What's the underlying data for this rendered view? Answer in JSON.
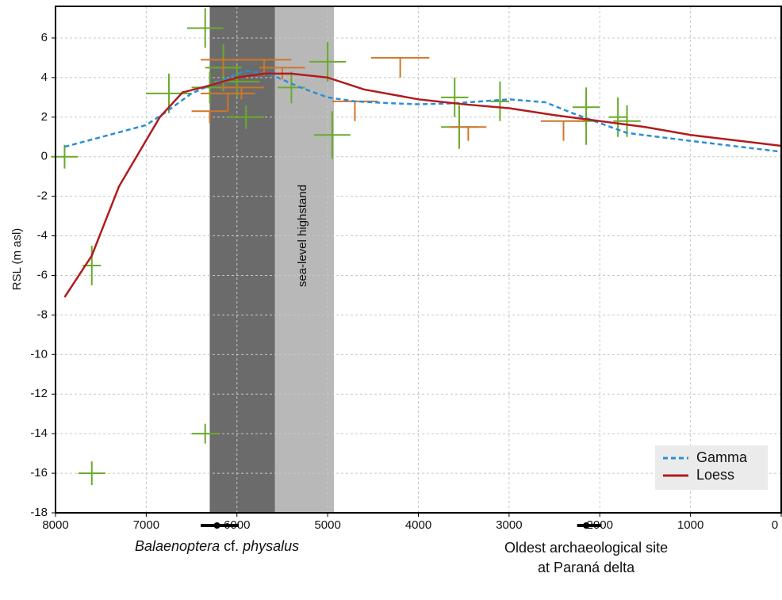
{
  "chart_data": {
    "type": "line",
    "y_label": "RSL (m asl)",
    "xlim": [
      8000,
      0
    ],
    "ylim": [
      -18,
      7.6
    ],
    "xticks": [
      8000,
      7000,
      6000,
      5000,
      4000,
      3000,
      2000,
      1000,
      0
    ],
    "yticks": [
      6,
      4,
      2,
      0,
      -2,
      -4,
      -6,
      -8,
      -10,
      -12,
      -14,
      -16,
      -18
    ],
    "grid": true,
    "legend": "lower right",
    "bands": [
      {
        "from": 6300,
        "to": 5580,
        "color": "#6b6b6b"
      },
      {
        "from": 5580,
        "to": 4930,
        "color": "#b8b8b8"
      }
    ],
    "band_label": {
      "text": "sea-level highstand",
      "x": 5270,
      "y": -4
    },
    "series": [
      {
        "name": "Gamma",
        "color": "#2a8fd6",
        "dashed": true,
        "x": [
          7900,
          7000,
          6800,
          6500,
          6200,
          5900,
          5600,
          5300,
          5000,
          4700,
          4300,
          4000,
          3600,
          3000,
          2600,
          2300,
          2000,
          1700,
          1000,
          0
        ],
        "values": [
          0.5,
          1.6,
          2.2,
          3.2,
          3.8,
          4.35,
          4.1,
          3.5,
          3.0,
          2.8,
          2.7,
          2.65,
          2.7,
          2.9,
          2.75,
          2.2,
          1.7,
          1.2,
          0.8,
          0.25
        ]
      },
      {
        "name": "Loess",
        "color": "#b01c1c",
        "dashed": false,
        "x": [
          7900,
          7600,
          7300,
          6850,
          6600,
          6300,
          6000,
          5700,
          5400,
          5000,
          4600,
          4000,
          3500,
          3000,
          2500,
          2000,
          1500,
          1000,
          0
        ],
        "values": [
          -7.1,
          -5,
          -1.5,
          2,
          3.25,
          3.6,
          4.0,
          4.2,
          4.2,
          4.0,
          3.4,
          2.9,
          2.65,
          2.45,
          2.1,
          1.8,
          1.5,
          1.1,
          0.55
        ]
      }
    ],
    "points": [
      {
        "color": "#6aaa2a",
        "error_style": "both",
        "x": [
          7900,
          7600,
          7600,
          6350,
          6350,
          6750,
          6300,
          6150,
          6000,
          5900,
          5400,
          5000,
          4950,
          3600,
          3550,
          3100,
          2150,
          2150,
          1800,
          1700
        ],
        "y": [
          0,
          -5.5,
          -16,
          -14,
          6.5,
          3.2,
          3.5,
          4.5,
          3.8,
          2.0,
          3.5,
          4.8,
          1.1,
          3.0,
          1.5,
          2.8,
          2.5,
          1.8,
          2.0,
          1.8
        ],
        "xerr": [
          150,
          100,
          150,
          150,
          200,
          250,
          200,
          200,
          250,
          200,
          150,
          200,
          200,
          150,
          200,
          100,
          150,
          100,
          100,
          150
        ],
        "yerr": [
          0.6,
          1.0,
          0.6,
          0.5,
          1.0,
          1.0,
          0.8,
          1.2,
          0.8,
          0.6,
          0.8,
          1.0,
          1.2,
          1.0,
          1.1,
          1.0,
          1.0,
          1.2,
          1.0,
          0.8
        ]
      },
      {
        "color": "#d0762a",
        "error_style": "down",
        "x": [
          6150,
          5700,
          5500,
          6100,
          5950,
          4700,
          4200,
          3450,
          2400,
          6300
        ],
        "y": [
          4.9,
          4.9,
          4.5,
          3.2,
          3.5,
          2.8,
          5.0,
          1.5,
          1.8,
          2.3
        ],
        "xerr": [
          250,
          300,
          250,
          300,
          250,
          250,
          320,
          200,
          250,
          200
        ],
        "yerr": [
          0.8,
          0.8,
          0.6,
          0.9,
          0.6,
          1.0,
          1.0,
          0.7,
          1.0,
          0.6
        ]
      }
    ],
    "age_ranges": [
      {
        "value": 6220,
        "range": [
          6400,
          5980
        ],
        "label": [
          {
            "text": "Balaenoptera",
            "italic": true
          },
          {
            "text": "cf.",
            "italic": false
          },
          {
            "text": "physalus",
            "italic": true
          }
        ]
      },
      {
        "value": 2150,
        "range": [
          2250,
          1980
        ],
        "label": [
          {
            "text": "Oldest archaeological site",
            "italic": false
          },
          {
            "text": "at Paraná delta",
            "italic": false
          }
        ]
      }
    ]
  }
}
